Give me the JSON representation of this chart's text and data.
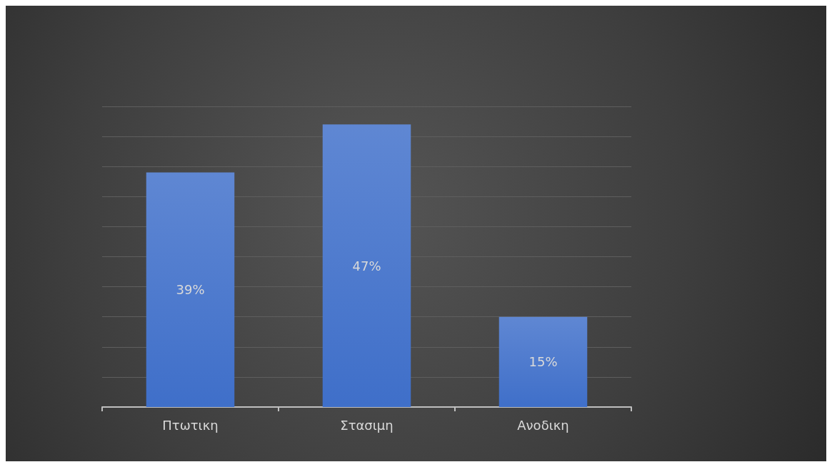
{
  "chart_data": {
    "type": "bar",
    "categories": [
      "Πτωτικη",
      "Στασιμη",
      "Ανοδικη"
    ],
    "values": [
      39,
      47,
      15
    ],
    "value_labels": [
      "39%",
      "47%",
      "15%"
    ],
    "color": "#3f6fc9",
    "grid": "y",
    "tick_labels": "x"
  }
}
